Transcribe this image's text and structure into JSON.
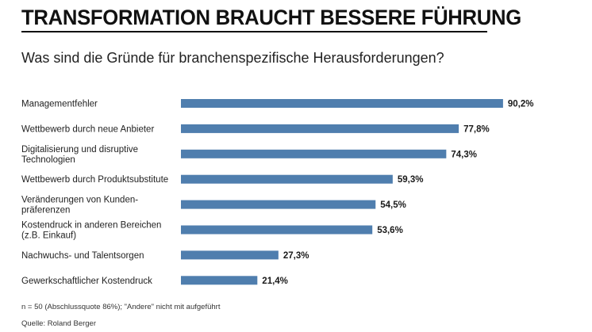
{
  "chart_data": {
    "type": "bar",
    "orientation": "horizontal",
    "title": "TRANSFORMATION BRAUCHT BESSERE FÜHRUNG",
    "subtitle": "Was sind die Gründe für branchenspezifische Herausforderungen?",
    "categories": [
      [
        "Managementfehler"
      ],
      [
        "Wettbewerb durch neue Anbieter"
      ],
      [
        "Digitalisierung und disruptive",
        "Technologien"
      ],
      [
        "Wettbewerb durch Produktsubstitute"
      ],
      [
        "Veränderungen von Kunden-",
        "präferenzen"
      ],
      [
        "Kostendruck in anderen Bereichen",
        "(z.B. Einkauf)"
      ],
      [
        "Nachwuchs- und Talentsorgen"
      ],
      [
        "Gewerkschaftlicher Kostendruck"
      ]
    ],
    "values": [
      90.2,
      77.8,
      74.3,
      59.3,
      54.5,
      53.6,
      27.3,
      21.4
    ],
    "value_labels": [
      "90,2%",
      "77,8%",
      "74,3%",
      "59,3%",
      "54,5%",
      "53,6%",
      "27,3%",
      "21,4%"
    ],
    "unit": "%",
    "xlim": [
      0,
      100
    ],
    "grid": false,
    "legend": "none",
    "bar_color": "#4f7eae",
    "note": "n = 50 (Abschlussquote 86%); \"Andere\" nicht mit aufgeführt",
    "source": "Quelle: Roland Berger"
  }
}
